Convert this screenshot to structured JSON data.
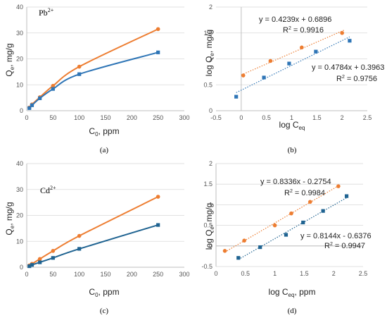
{
  "colors": {
    "orange": "#ED7D31",
    "blue": "#2E75B6",
    "teal": "#1F6391",
    "grid": "#D9D9D9",
    "axis": "#BFBFBF"
  },
  "panel_labels": [
    "(a)",
    "(b)",
    "(c)",
    "(d)"
  ],
  "chart_data": [
    {
      "panel": "(a)",
      "type": "line",
      "annotation": "Pb",
      "annotation_sup": "2+",
      "xlabel": "C",
      "xlabel_sub": "0",
      "xlabel_rest": ", ppm",
      "ylabel": "Q",
      "ylabel_sub": "e",
      "ylabel_rest": ", mg/g",
      "xlim": [
        0,
        300
      ],
      "ylim": [
        0,
        40
      ],
      "xticks": [
        "0",
        "50",
        "100",
        "150",
        "200",
        "250",
        "300"
      ],
      "yticks": [
        "0",
        "10",
        "20",
        "30",
        "40"
      ],
      "series": [
        {
          "color": "orange",
          "x": [
            5,
            10,
            25,
            50,
            100,
            250
          ],
          "y": [
            1.2,
            2.4,
            5.2,
            9.6,
            17.0,
            31.5
          ]
        },
        {
          "color": "blue",
          "x": [
            5,
            10,
            25,
            50,
            100,
            250
          ],
          "y": [
            1.0,
            2.1,
            4.8,
            8.4,
            14.1,
            22.5
          ]
        }
      ]
    },
    {
      "panel": "(b)",
      "type": "scatter",
      "xlabel": "log C",
      "xlabel_sub": "eq",
      "ylabel": "log Q",
      "ylabel_sub": "e",
      "ylabel_rest": ", mg/g",
      "xlim": [
        -0.5,
        2.5
      ],
      "ylim": [
        0,
        2
      ],
      "xticks": [
        "-0.5",
        "0",
        "0.5",
        "1",
        "1.5",
        "2",
        "2.5"
      ],
      "yticks": [
        "0",
        "0.5",
        "1",
        "1.5",
        "2"
      ],
      "annotations": [
        {
          "lines": [
            "y = 0.4239x + 0.6896",
            "R2 = 0.9916"
          ]
        },
        {
          "lines": [
            "y = 0.4784x + 0.3963",
            "R2 = 0.9756"
          ]
        }
      ],
      "series": [
        {
          "color": "orange",
          "x": [
            0.04,
            0.58,
            1.2,
            2.0
          ],
          "y": [
            0.68,
            0.96,
            1.22,
            1.5
          ],
          "trend": [
            0.4239,
            0.6896
          ],
          "trend_x": [
            0.0,
            2.05
          ]
        },
        {
          "color": "blue",
          "x": [
            -0.1,
            0.45,
            0.95,
            1.48,
            2.15
          ],
          "y": [
            0.27,
            0.64,
            0.91,
            1.14,
            1.35
          ],
          "trend": [
            0.4784,
            0.3963
          ],
          "trend_x": [
            -0.1,
            2.15
          ]
        }
      ]
    },
    {
      "panel": "(c)",
      "type": "line",
      "annotation": "Cd",
      "annotation_sup": "2+",
      "xlabel": "C",
      "xlabel_sub": "0",
      "xlabel_rest": ", ppm",
      "ylabel": "Q",
      "ylabel_sub": "e",
      "ylabel_rest": ", mg/g",
      "xlim": [
        0,
        300
      ],
      "ylim": [
        0,
        40
      ],
      "xticks": [
        "0",
        "50",
        "100",
        "150",
        "200",
        "250",
        "300"
      ],
      "yticks": [
        "0",
        "10",
        "20",
        "30",
        "40"
      ],
      "series": [
        {
          "color": "orange",
          "x": [
            5,
            10,
            25,
            50,
            100,
            250
          ],
          "y": [
            0.7,
            1.3,
            3.2,
            6.3,
            12.1,
            27.2
          ]
        },
        {
          "color": "teal",
          "x": [
            5,
            10,
            25,
            50,
            100,
            250
          ],
          "y": [
            0.4,
            0.9,
            1.9,
            3.6,
            7.1,
            16.3
          ]
        }
      ]
    },
    {
      "panel": "(d)",
      "type": "scatter",
      "xlabel": "log C",
      "xlabel_sub": "eq",
      "xlabel_rest": ", ppm",
      "ylabel": "log Q",
      "ylabel_sub": "e",
      "ylabel_rest": ", mg/g",
      "xlim": [
        0,
        2.5
      ],
      "ylim": [
        -0.5,
        2
      ],
      "xticks": [
        "0",
        "0.5",
        "1",
        "1.5",
        "2",
        "2.5"
      ],
      "yticks": [
        "-0.5",
        "0",
        "0.5",
        "1",
        "1.5",
        "2"
      ],
      "annotations": [
        {
          "lines": [
            "y = 0.8336x - 0.2754",
            "R2 = 0.9984"
          ]
        },
        {
          "lines": [
            "y = 0.8144x - 0.6376",
            "R2 = 0.9947"
          ]
        }
      ],
      "series": [
        {
          "color": "orange",
          "x": [
            0.15,
            0.48,
            1.0,
            1.28,
            1.6,
            2.08
          ],
          "y": [
            -0.12,
            0.13,
            0.5,
            0.79,
            1.07,
            1.45
          ],
          "trend": [
            0.8336,
            -0.2754
          ],
          "trend_x": [
            0.15,
            2.1
          ]
        },
        {
          "color": "teal",
          "x": [
            0.38,
            0.75,
            1.19,
            1.48,
            1.82,
            2.22
          ],
          "y": [
            -0.29,
            -0.03,
            0.27,
            0.57,
            0.85,
            1.21
          ],
          "trend": [
            0.8144,
            -0.6376
          ],
          "trend_x": [
            0.38,
            2.22
          ]
        }
      ]
    }
  ]
}
